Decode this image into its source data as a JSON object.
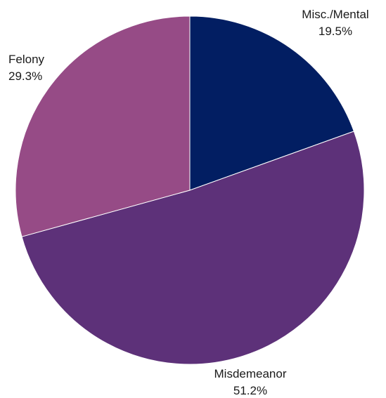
{
  "chart_data": {
    "type": "pie",
    "title": "",
    "start_angle_deg": 0,
    "direction": "clockwise",
    "slices": [
      {
        "name": "Misc./Mental",
        "value": 19.5,
        "percent_label": "19.5%",
        "color": "#021e62"
      },
      {
        "name": "Misdemeanor",
        "value": 51.2,
        "percent_label": "51.2%",
        "color": "#5d3179"
      },
      {
        "name": "Felony",
        "value": 29.3,
        "percent_label": "29.3%",
        "color": "#964b86"
      }
    ],
    "legend": "none",
    "labels": "outside"
  }
}
